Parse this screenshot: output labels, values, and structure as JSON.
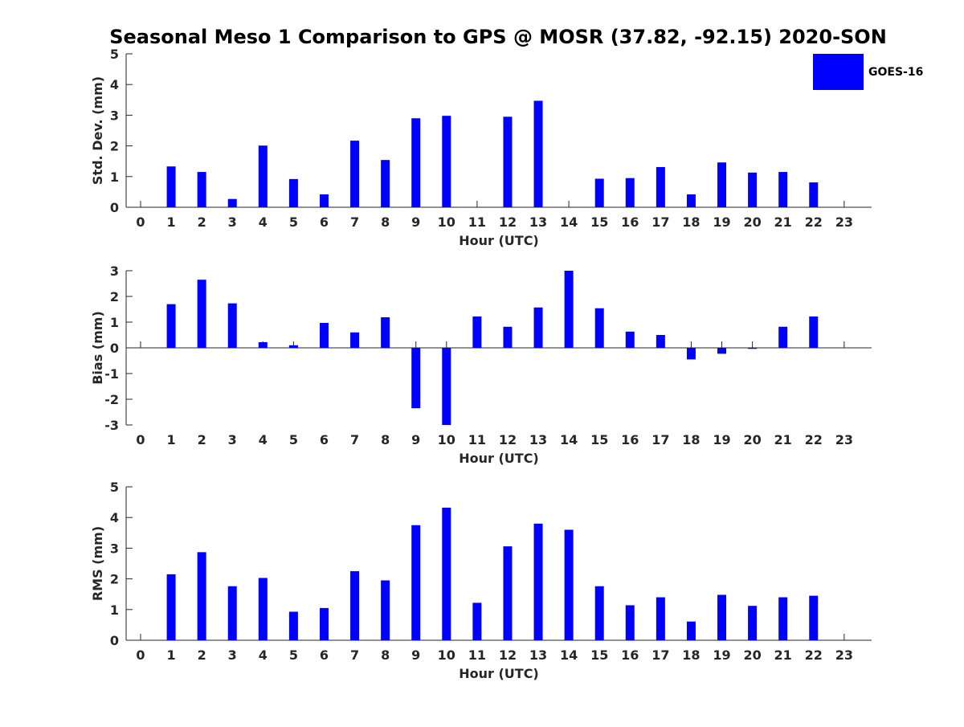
{
  "title": "Seasonal Meso 1 Comparison to GPS @ MOSR (37.82, -92.15) 2020-SON",
  "legend": {
    "label": "GOES-16",
    "color": "#0000ff",
    "placement": "top-right"
  },
  "chart_data": [
    {
      "type": "bar",
      "ylabel": "Std. Dev. (mm)",
      "xlabel": "Hour (UTC)",
      "ylim": [
        0,
        5
      ],
      "yticks": [
        "0",
        "1",
        "2",
        "3",
        "4",
        "5"
      ],
      "x": [
        "0",
        "1",
        "2",
        "3",
        "4",
        "5",
        "6",
        "7",
        "8",
        "9",
        "10",
        "11",
        "12",
        "13",
        "14",
        "15",
        "16",
        "17",
        "18",
        "19",
        "20",
        "21",
        "22",
        "23"
      ],
      "series": [
        {
          "name": "GOES-16",
          "values": [
            null,
            1.33,
            1.15,
            0.27,
            2.01,
            0.92,
            0.42,
            2.17,
            1.54,
            2.9,
            2.98,
            null,
            2.95,
            3.47,
            null,
            0.93,
            0.95,
            1.31,
            0.42,
            1.46,
            1.13,
            1.15,
            0.81,
            null
          ]
        }
      ]
    },
    {
      "type": "bar",
      "ylabel": "Bias (mm)",
      "xlabel": "Hour (UTC)",
      "ylim": [
        -3,
        3
      ],
      "yticks": [
        "-3",
        "-2",
        "-1",
        "0",
        "1",
        "2",
        "3"
      ],
      "x": [
        "0",
        "1",
        "2",
        "3",
        "4",
        "5",
        "6",
        "7",
        "8",
        "9",
        "10",
        "11",
        "12",
        "13",
        "14",
        "15",
        "16",
        "17",
        "18",
        "19",
        "20",
        "21",
        "22",
        "23"
      ],
      "series": [
        {
          "name": "GOES-16",
          "values": [
            null,
            1.7,
            2.65,
            1.73,
            0.22,
            0.1,
            0.97,
            0.6,
            1.19,
            -2.35,
            -3.0,
            1.22,
            0.82,
            1.57,
            3.0,
            1.54,
            0.63,
            0.5,
            -0.45,
            -0.23,
            -0.04,
            0.82,
            1.22,
            null
          ]
        }
      ]
    },
    {
      "type": "bar",
      "ylabel": "RMS (mm)",
      "xlabel": "Hour (UTC)",
      "ylim": [
        0,
        5
      ],
      "yticks": [
        "0",
        "1",
        "2",
        "3",
        "4",
        "5"
      ],
      "x": [
        "0",
        "1",
        "2",
        "3",
        "4",
        "5",
        "6",
        "7",
        "8",
        "9",
        "10",
        "11",
        "12",
        "13",
        "14",
        "15",
        "16",
        "17",
        "18",
        "19",
        "20",
        "21",
        "22",
        "23"
      ],
      "series": [
        {
          "name": "GOES-16",
          "values": [
            null,
            2.15,
            2.87,
            1.76,
            2.03,
            0.93,
            1.05,
            2.25,
            1.95,
            3.75,
            4.32,
            1.22,
            3.06,
            3.8,
            3.6,
            1.76,
            1.14,
            1.4,
            0.61,
            1.48,
            1.12,
            1.4,
            1.45,
            null
          ]
        }
      ]
    }
  ]
}
